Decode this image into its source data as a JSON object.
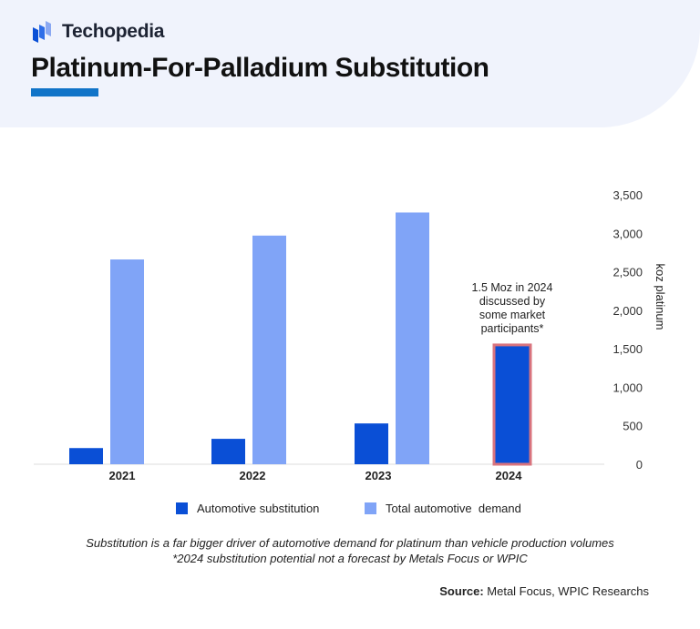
{
  "brand": {
    "name": "Techopedia",
    "accent": "#1174c8"
  },
  "title": "Platinum-For-Palladium Substitution",
  "chart_data": {
    "type": "bar",
    "categories": [
      "2021",
      "2022",
      "2023",
      "2024"
    ],
    "series": [
      {
        "name": "Automotive substitution",
        "color": "#0a4fd6",
        "values": [
          210,
          330,
          530,
          1550
        ]
      },
      {
        "name": "Total automotive  demand",
        "color": "#80a4f7",
        "values": [
          2660,
          2970,
          3270,
          null
        ]
      }
    ],
    "ylabel": "koz platinum",
    "ylim": [
      0,
      3500
    ],
    "yticks": [
      "0",
      "500",
      "1,000",
      "1,500",
      "2,000",
      "2,500",
      "3,000",
      "3,500"
    ],
    "y_axis_position": "right",
    "grid": false,
    "legend_position": "bottom",
    "highlight": {
      "category": "2024",
      "border_color": "#d9747e"
    },
    "annotation": [
      "1.5 Moz in 2024",
      "discussed by",
      "some market",
      "participants*"
    ]
  },
  "notes": [
    "Substitution is a far bigger driver of automotive demand for platinum than vehicle production volumes",
    "*2024 substitution potential not a forecast by Metals Focus or WPIC"
  ],
  "source": {
    "label": "Source:",
    "text": " Metal Focus, WPIC Researchs"
  }
}
